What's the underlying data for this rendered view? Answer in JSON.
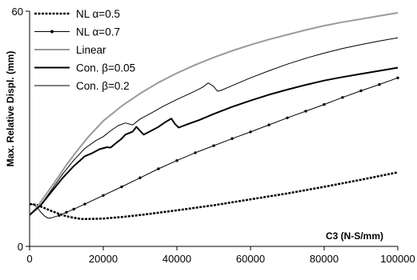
{
  "chart_data": {
    "type": "line",
    "xlabel": "C3 (N-S/mm)",
    "ylabel": "Max. Relative Displ. (mm)",
    "xlim": [
      0,
      100000
    ],
    "ylim": [
      0,
      60
    ],
    "x_ticks": [
      "0",
      "20000",
      "40000",
      "60000",
      "80000",
      "100000"
    ],
    "y_ticks": [
      "0",
      "60"
    ],
    "grid": false,
    "legend_position": "top-left",
    "series": [
      {
        "name": "NL α=0.5",
        "style": "dashed",
        "color": "#000000",
        "points": [
          [
            0,
            10.8
          ],
          [
            2000,
            10.6
          ],
          [
            4000,
            9.8
          ],
          [
            6000,
            9.0
          ],
          [
            8000,
            8.3
          ],
          [
            10000,
            7.7
          ],
          [
            12000,
            7.3
          ],
          [
            14000,
            7.0
          ],
          [
            16000,
            7.0
          ],
          [
            20000,
            7.1
          ],
          [
            25000,
            7.5
          ],
          [
            30000,
            8.0
          ],
          [
            35000,
            8.6
          ],
          [
            40000,
            9.2
          ],
          [
            50000,
            10.5
          ],
          [
            60000,
            12.0
          ],
          [
            70000,
            13.5
          ],
          [
            80000,
            15.2
          ],
          [
            90000,
            17.0
          ],
          [
            100000,
            18.9
          ]
        ]
      },
      {
        "name": "NL α=0.7",
        "style": "dotted-marker",
        "color": "#000000",
        "points": [
          [
            0,
            10.9
          ],
          [
            1000,
            10.7
          ],
          [
            2000,
            10.0
          ],
          [
            3000,
            8.8
          ],
          [
            4000,
            7.8
          ],
          [
            5000,
            7.2
          ],
          [
            6000,
            7.3
          ],
          [
            8000,
            7.9
          ],
          [
            10000,
            8.7
          ],
          [
            12000,
            9.5
          ],
          [
            15000,
            10.8
          ],
          [
            20000,
            13.0
          ],
          [
            25000,
            15.2
          ],
          [
            30000,
            17.5
          ],
          [
            35000,
            19.8
          ],
          [
            40000,
            21.9
          ],
          [
            45000,
            23.9
          ],
          [
            50000,
            25.7
          ],
          [
            55000,
            27.5
          ],
          [
            60000,
            29.2
          ],
          [
            65000,
            31.0
          ],
          [
            70000,
            32.8
          ],
          [
            75000,
            34.5
          ],
          [
            80000,
            36.2
          ],
          [
            85000,
            38.0
          ],
          [
            90000,
            39.7
          ],
          [
            95000,
            41.3
          ],
          [
            100000,
            43.0
          ]
        ]
      },
      {
        "name": "Linear",
        "style": "solid",
        "color": "#9a9a9a",
        "points": [
          [
            0,
            8.0
          ],
          [
            2000,
            10.0
          ],
          [
            5000,
            14.0
          ],
          [
            8000,
            18.0
          ],
          [
            10000,
            20.8
          ],
          [
            13000,
            24.5
          ],
          [
            16000,
            28.0
          ],
          [
            20000,
            32.0
          ],
          [
            25000,
            35.8
          ],
          [
            30000,
            39.0
          ],
          [
            35000,
            41.8
          ],
          [
            40000,
            44.2
          ],
          [
            45000,
            46.3
          ],
          [
            50000,
            48.2
          ],
          [
            55000,
            49.9
          ],
          [
            60000,
            51.4
          ],
          [
            65000,
            52.8
          ],
          [
            70000,
            54.0
          ],
          [
            75000,
            55.2
          ],
          [
            80000,
            56.3
          ],
          [
            85000,
            57.2
          ],
          [
            90000,
            58.0
          ],
          [
            95000,
            58.8
          ],
          [
            100000,
            59.6
          ]
        ]
      },
      {
        "name": "Con. β=0.05",
        "style": "solid-thick",
        "color": "#000000",
        "points": [
          [
            0,
            8.0
          ],
          [
            3000,
            10.5
          ],
          [
            6000,
            14.0
          ],
          [
            9000,
            17.5
          ],
          [
            12000,
            20.5
          ],
          [
            15000,
            23.0
          ],
          [
            17000,
            23.8
          ],
          [
            19000,
            24.8
          ],
          [
            21000,
            25.3
          ],
          [
            22000,
            25.2
          ],
          [
            23000,
            26.0
          ],
          [
            25000,
            27.5
          ],
          [
            26000,
            28.5
          ],
          [
            28000,
            29.3
          ],
          [
            29000,
            30.5
          ],
          [
            30000,
            29.5
          ],
          [
            31000,
            28.5
          ],
          [
            33000,
            29.5
          ],
          [
            35000,
            30.5
          ],
          [
            37000,
            31.8
          ],
          [
            38500,
            32.6
          ],
          [
            39500,
            31.2
          ],
          [
            40500,
            30.3
          ],
          [
            43000,
            31.2
          ],
          [
            46000,
            32.2
          ],
          [
            50000,
            33.8
          ],
          [
            55000,
            35.6
          ],
          [
            60000,
            37.2
          ],
          [
            65000,
            38.7
          ],
          [
            70000,
            40.0
          ],
          [
            75000,
            41.2
          ],
          [
            80000,
            42.3
          ],
          [
            85000,
            43.2
          ],
          [
            90000,
            44.0
          ],
          [
            95000,
            44.8
          ],
          [
            100000,
            45.6
          ]
        ]
      },
      {
        "name": "Con. β=0.2",
        "style": "solid-thin",
        "color": "#000000",
        "points": [
          [
            0,
            8.0
          ],
          [
            3000,
            10.5
          ],
          [
            6000,
            14.5
          ],
          [
            9000,
            18.5
          ],
          [
            12000,
            22.0
          ],
          [
            15000,
            25.0
          ],
          [
            18000,
            27.0
          ],
          [
            20000,
            28.0
          ],
          [
            22000,
            29.5
          ],
          [
            24000,
            30.8
          ],
          [
            26000,
            31.5
          ],
          [
            28000,
            31.0
          ],
          [
            30000,
            32.5
          ],
          [
            33000,
            34.0
          ],
          [
            36000,
            35.6
          ],
          [
            40000,
            37.5
          ],
          [
            44000,
            39.2
          ],
          [
            47000,
            40.6
          ],
          [
            48500,
            41.7
          ],
          [
            50000,
            40.8
          ],
          [
            51000,
            39.6
          ],
          [
            52000,
            39.8
          ],
          [
            55000,
            41.0
          ],
          [
            60000,
            43.0
          ],
          [
            65000,
            44.8
          ],
          [
            70000,
            46.5
          ],
          [
            75000,
            48.0
          ],
          [
            80000,
            49.3
          ],
          [
            85000,
            50.5
          ],
          [
            90000,
            51.5
          ],
          [
            95000,
            52.4
          ],
          [
            100000,
            53.2
          ]
        ]
      }
    ]
  }
}
